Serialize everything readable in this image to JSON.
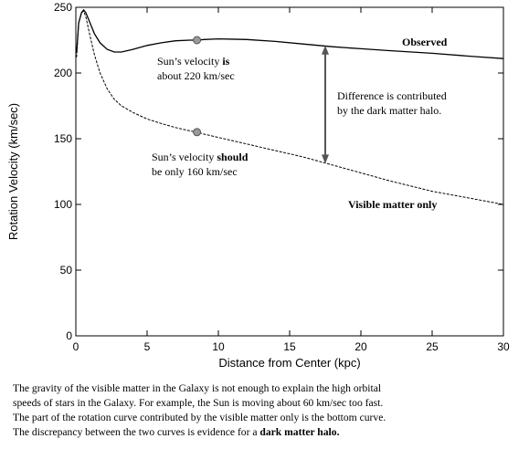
{
  "chart_data": {
    "type": "line",
    "xlabel": "Distance from Center (kpc)",
    "ylabel": "Rotation Velocity (km/sec)",
    "xlim": [
      0,
      30
    ],
    "ylim": [
      0,
      250
    ],
    "xticks": [
      0,
      5,
      10,
      15,
      20,
      25,
      30
    ],
    "yticks": [
      0,
      50,
      100,
      150,
      200,
      250
    ],
    "grid": false,
    "series": [
      {
        "name": "Observed",
        "style": "solid",
        "x": [
          0.05,
          0.2,
          0.4,
          0.55,
          0.7,
          1.0,
          1.3,
          1.7,
          2.2,
          2.7,
          3.2,
          4.0,
          5.0,
          6.0,
          7.0,
          8.0,
          8.5,
          9.0,
          10.0,
          12.0,
          14.0,
          16.0,
          18.0,
          20.0,
          22.0,
          25.0,
          28.0,
          30.0
        ],
        "values": [
          215,
          238,
          246,
          248,
          246,
          238,
          230,
          223,
          218,
          216,
          216,
          218,
          221,
          223,
          224.5,
          225,
          225,
          225.5,
          226,
          225.5,
          224,
          222,
          220,
          218.5,
          217,
          215,
          212.5,
          211
        ]
      },
      {
        "name": "Visible matter only",
        "style": "dashed",
        "x": [
          0.05,
          0.2,
          0.4,
          0.55,
          0.7,
          1.0,
          1.3,
          1.7,
          2.2,
          2.7,
          3.2,
          4.0,
          5.0,
          6.0,
          7.0,
          8.0,
          8.5,
          9.0,
          10.0,
          12.0,
          14.0,
          16.0,
          18.0,
          20.0,
          22.0,
          25.0,
          28.0,
          30.0
        ],
        "values": [
          212,
          238,
          246,
          247,
          243,
          228,
          214,
          200,
          188,
          180,
          175,
          170,
          165,
          161.5,
          158.5,
          156,
          155,
          153.5,
          151,
          146,
          141,
          136,
          130,
          124,
          118,
          110,
          104,
          100
        ]
      }
    ],
    "points": [
      {
        "x": 8.5,
        "y": 225
      },
      {
        "x": 8.5,
        "y": 155
      }
    ],
    "arrow": {
      "x": 17.5,
      "y_top": 221,
      "y_bottom": 131
    },
    "annotations": {
      "observed_label": "Observed",
      "visible_label": "Visible matter only",
      "sun_observed_line1_a": "Sun’s velocity ",
      "sun_observed_line1_b": "is",
      "sun_observed_line2": "about 220 km/sec",
      "sun_should_line1_a": "Sun’s velocity ",
      "sun_should_line1_b": "should",
      "sun_should_line2": "be only 160 km/sec",
      "difference_line1": "Difference is contributed",
      "difference_line2": "by the dark matter halo."
    }
  },
  "caption": {
    "line1": "The gravity of the visible matter in the Galaxy is not enough to explain the high orbital",
    "line2": "speeds of stars in the Galaxy. For example, the Sun is moving about 60 km/sec too fast.",
    "line3": "The part of the rotation curve contributed by the visible matter only is the bottom curve.",
    "line4_a": "The discrepancy between the two curves is evidence for a ",
    "line4_b": "dark matter halo."
  }
}
